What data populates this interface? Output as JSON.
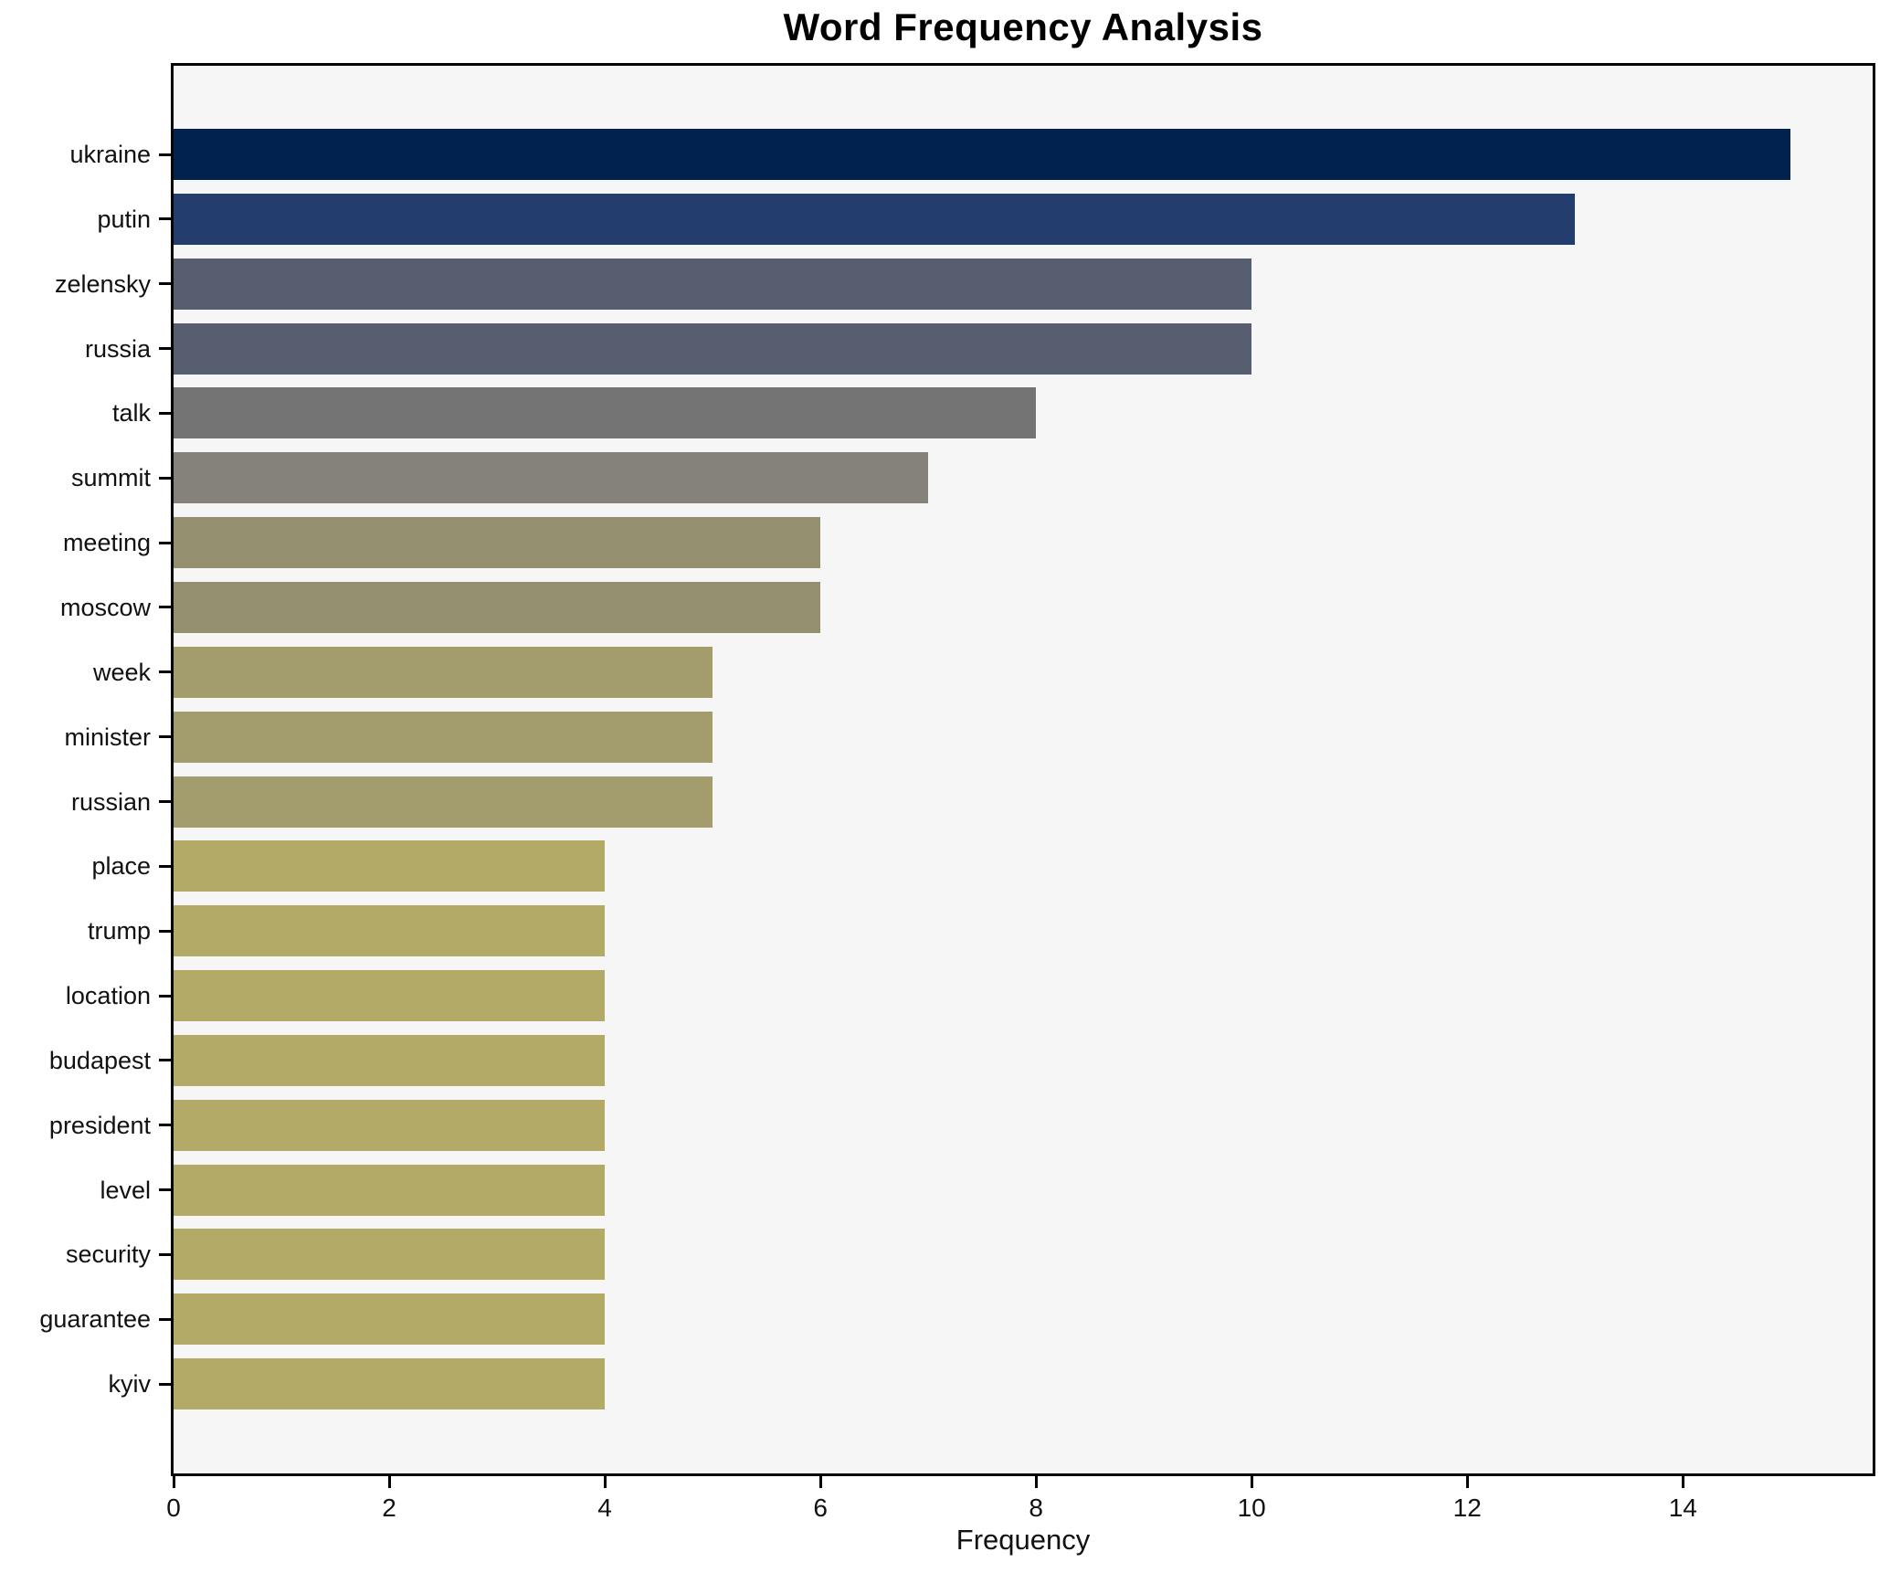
{
  "chart_data": {
    "type": "bar",
    "orientation": "horizontal",
    "title": "Word Frequency Analysis",
    "xlabel": "Frequency",
    "ylabel": "",
    "categories": [
      "ukraine",
      "putin",
      "zelensky",
      "russia",
      "talk",
      "summit",
      "meeting",
      "moscow",
      "week",
      "minister",
      "russian",
      "place",
      "trump",
      "location",
      "budapest",
      "president",
      "level",
      "security",
      "guarantee",
      "kyiv"
    ],
    "values": [
      15,
      13,
      10,
      10,
      8,
      7,
      6,
      6,
      5,
      5,
      5,
      4,
      4,
      4,
      4,
      4,
      4,
      4,
      4,
      4
    ],
    "bar_colors": [
      "#01224e",
      "#233d6e",
      "#575e70",
      "#575e70",
      "#747474",
      "#84827a",
      "#94906f",
      "#94906f",
      "#a39c6d",
      "#a39c6d",
      "#a39c6d",
      "#b4aa68",
      "#b4aa68",
      "#b4aa68",
      "#b4aa68",
      "#b4aa68",
      "#b4aa68",
      "#b4aa68",
      "#b4aa68",
      "#b4aa68"
    ],
    "x_ticks": [
      0,
      2,
      4,
      6,
      8,
      10,
      12,
      14
    ],
    "xlim": [
      0,
      15.76
    ],
    "grid": false,
    "legend": "none",
    "plot_bg": "#f6f6f7",
    "figure_bg": "#ffffff",
    "spine_color": "#000000"
  }
}
